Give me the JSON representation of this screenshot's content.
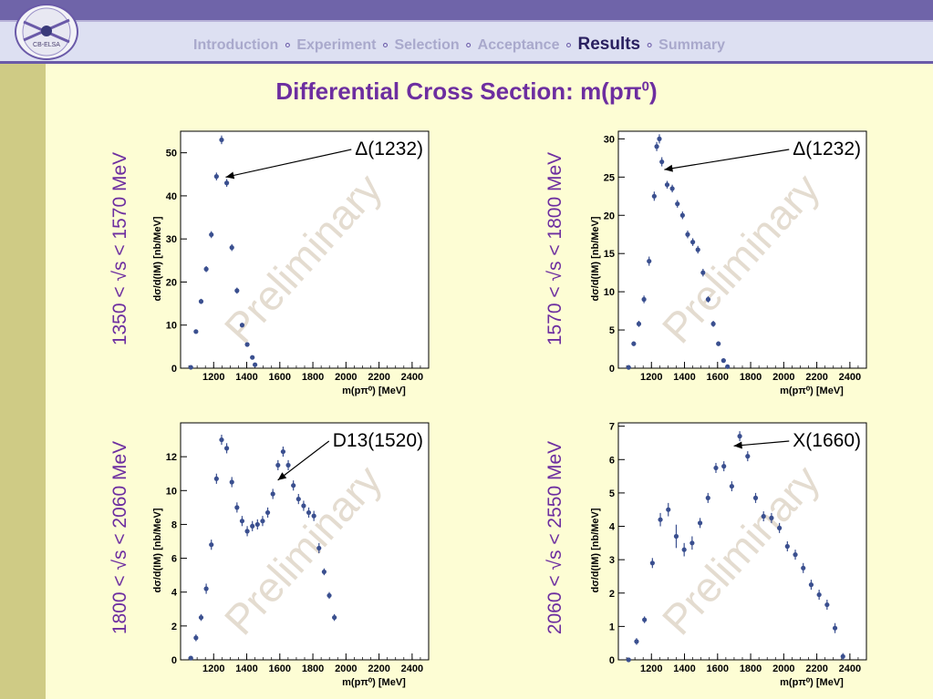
{
  "header": {
    "nav": [
      {
        "label": "Introduction",
        "active": false
      },
      {
        "label": "Experiment",
        "active": false
      },
      {
        "label": "Selection",
        "active": false
      },
      {
        "label": "Acceptance",
        "active": false
      },
      {
        "label": "Results",
        "active": true
      },
      {
        "label": "Summary",
        "active": false
      }
    ],
    "separator": "∘",
    "logo_text": "CB-ELSA"
  },
  "title": {
    "main": "Differential Cross Section: m(pπ",
    "sup": "0",
    "close": ")"
  },
  "colors": {
    "marker": "#3a4f8f",
    "accent": "#6d2ea0",
    "nav_inactive": "#a9a9cc",
    "nav_active": "#2a2060",
    "watermark": "#e4dcd0"
  },
  "chart_data": [
    {
      "type": "scatter",
      "row_label": "1350 < √s < 1570 MeV",
      "xlabel": "m(pπ⁰) [MeV]",
      "ylabel": "dσ/d(IM) [nb/MeV]",
      "xlim": [
        1000,
        2500
      ],
      "ylim": [
        0,
        55
      ],
      "xticks": [
        1200,
        1400,
        1600,
        1800,
        2000,
        2200,
        2400
      ],
      "yticks": [
        0,
        10,
        20,
        30,
        40,
        50
      ],
      "watermark": "Preliminary",
      "annotation": {
        "text": "Δ(1232)",
        "x": 1240,
        "y": 43.5
      },
      "x": [
        1062,
        1093,
        1124,
        1155,
        1186,
        1217,
        1248,
        1279,
        1310,
        1341,
        1372,
        1403,
        1434,
        1450
      ],
      "y": [
        0.2,
        8.5,
        15.5,
        23.0,
        31.0,
        44.5,
        53.0,
        43.0,
        28.0,
        18.0,
        10.0,
        5.5,
        2.5,
        0.8
      ],
      "err": [
        0.3,
        0.5,
        0.6,
        0.7,
        0.8,
        0.9,
        1.0,
        0.9,
        0.8,
        0.7,
        0.5,
        0.4,
        0.3,
        0.2
      ]
    },
    {
      "type": "scatter",
      "row_label": "1570 < √s < 1800 MeV",
      "xlabel": "m(pπ⁰) [MeV]",
      "ylabel": "dσ/d(IM) [nb/MeV]",
      "xlim": [
        1000,
        2500
      ],
      "ylim": [
        0,
        31
      ],
      "xticks": [
        1200,
        1400,
        1600,
        1800,
        2000,
        2200,
        2400
      ],
      "yticks": [
        0,
        5,
        10,
        15,
        20,
        25,
        30
      ],
      "watermark": "Preliminary",
      "annotation": {
        "text": "Δ(1232)",
        "x": 1245,
        "y": 25.5
      },
      "x": [
        1062,
        1093,
        1124,
        1155,
        1186,
        1217,
        1232,
        1248,
        1263,
        1295,
        1326,
        1357,
        1388,
        1419,
        1450,
        1481,
        1512,
        1543,
        1574,
        1605,
        1636,
        1660
      ],
      "y": [
        0.1,
        3.2,
        5.8,
        9.0,
        14.0,
        22.5,
        29.0,
        30.0,
        27.0,
        24.0,
        23.5,
        21.5,
        20.0,
        17.5,
        16.5,
        15.5,
        12.5,
        9.0,
        5.8,
        3.2,
        1.0,
        0.2
      ],
      "err": [
        0.1,
        0.3,
        0.4,
        0.5,
        0.6,
        0.6,
        0.6,
        0.6,
        0.6,
        0.5,
        0.5,
        0.5,
        0.5,
        0.5,
        0.5,
        0.5,
        0.5,
        0.4,
        0.4,
        0.3,
        0.2,
        0.1
      ]
    },
    {
      "type": "scatter",
      "row_label": "1800 < √s < 2060 MeV",
      "xlabel": "m(pπ⁰) [MeV]",
      "ylabel": "dσ/d(IM) [nb/MeV]",
      "xlim": [
        1000,
        2500
      ],
      "ylim": [
        0,
        14
      ],
      "xticks": [
        1200,
        1400,
        1600,
        1800,
        2000,
        2200,
        2400
      ],
      "yticks": [
        0,
        2,
        4,
        6,
        8,
        10,
        12
      ],
      "watermark": "Preliminary",
      "annotation": {
        "text": "D13(1520)",
        "x": 1555,
        "y": 10.4
      },
      "x": [
        1062,
        1093,
        1124,
        1155,
        1186,
        1217,
        1248,
        1279,
        1310,
        1341,
        1372,
        1403,
        1434,
        1465,
        1496,
        1527,
        1558,
        1589,
        1620,
        1651,
        1682,
        1713,
        1744,
        1775,
        1806,
        1837,
        1868,
        1899,
        1930
      ],
      "y": [
        0.1,
        1.3,
        2.5,
        4.2,
        6.8,
        10.7,
        13.0,
        12.5,
        10.5,
        9.0,
        8.2,
        7.6,
        7.9,
        8.0,
        8.2,
        8.7,
        9.8,
        11.5,
        12.3,
        11.5,
        10.3,
        9.5,
        9.1,
        8.7,
        8.5,
        6.6,
        5.2,
        3.8,
        2.5
      ],
      "err": [
        0.1,
        0.2,
        0.2,
        0.3,
        0.3,
        0.3,
        0.3,
        0.3,
        0.3,
        0.3,
        0.3,
        0.3,
        0.3,
        0.3,
        0.3,
        0.3,
        0.3,
        0.3,
        0.3,
        0.3,
        0.3,
        0.3,
        0.3,
        0.3,
        0.3,
        0.3,
        0.2,
        0.2,
        0.2
      ]
    },
    {
      "type": "scatter",
      "row_label": "2060 < √s < 2550 MeV",
      "xlabel": "m(pπ⁰) [MeV]",
      "ylabel": "dσ/d(IM) [nb/MeV]",
      "xlim": [
        1000,
        2500
      ],
      "ylim": [
        0,
        7.1
      ],
      "xticks": [
        1200,
        1400,
        1600,
        1800,
        2000,
        2200,
        2400
      ],
      "yticks": [
        0,
        1,
        2,
        3,
        4,
        5,
        6,
        7
      ],
      "watermark": "Preliminary",
      "annotation": {
        "text": "X(1660)",
        "x": 1665,
        "y": 6.3
      },
      "x": [
        1062,
        1110,
        1158,
        1206,
        1254,
        1302,
        1350,
        1398,
        1446,
        1494,
        1542,
        1590,
        1638,
        1686,
        1734,
        1782,
        1830,
        1878,
        1926,
        1974,
        2022,
        2070,
        2118,
        2166,
        2214,
        2262,
        2310,
        2358
      ],
      "y": [
        0.0,
        0.55,
        1.2,
        2.9,
        4.2,
        4.5,
        3.7,
        3.3,
        3.5,
        4.1,
        4.85,
        5.75,
        5.8,
        5.2,
        6.7,
        6.1,
        4.85,
        4.3,
        4.25,
        3.95,
        3.4,
        3.15,
        2.75,
        2.25,
        1.95,
        1.65,
        0.95,
        0.1
      ],
      "err": [
        0.05,
        0.1,
        0.1,
        0.15,
        0.2,
        0.2,
        0.35,
        0.2,
        0.2,
        0.15,
        0.15,
        0.15,
        0.15,
        0.15,
        0.15,
        0.15,
        0.15,
        0.15,
        0.15,
        0.15,
        0.15,
        0.15,
        0.15,
        0.15,
        0.15,
        0.15,
        0.15,
        0.1
      ]
    }
  ]
}
